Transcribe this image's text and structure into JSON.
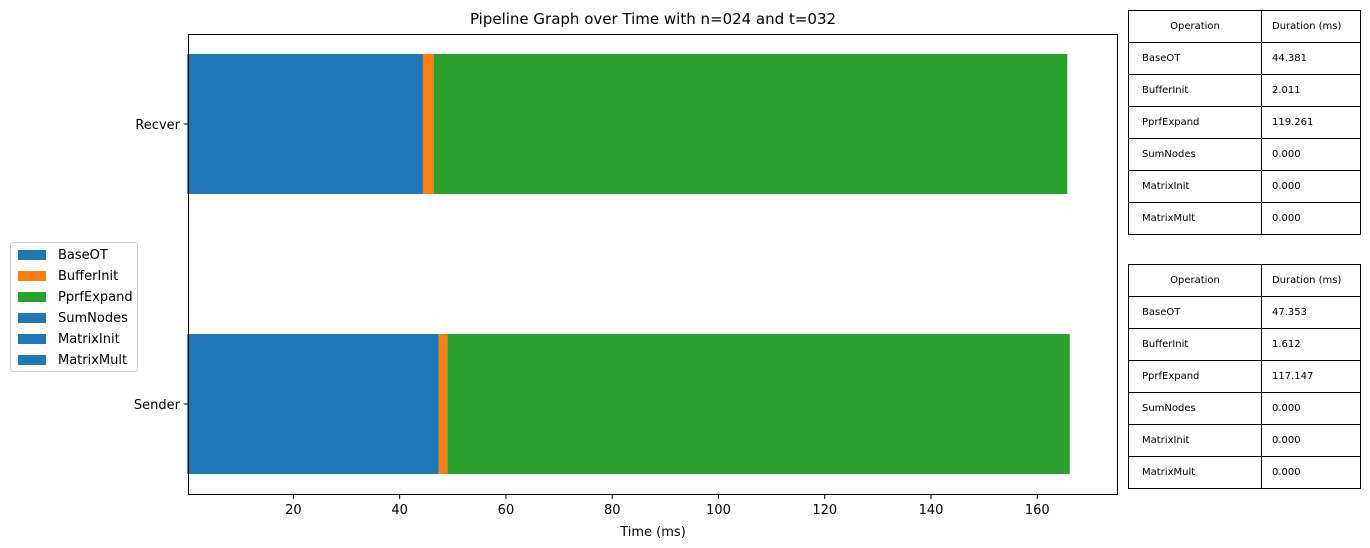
{
  "chart_data": {
    "type": "bar",
    "orientation": "horizontal",
    "stacked": true,
    "title": "Pipeline Graph over Time with n=024 and t=032",
    "xlabel": "Time (ms)",
    "xlim": [
      0,
      175
    ],
    "xticks": [
      20,
      40,
      60,
      80,
      100,
      120,
      140,
      160
    ],
    "categories": [
      "Sender",
      "Recver"
    ],
    "series": [
      {
        "name": "BaseOT",
        "color": "#1f77b4",
        "values": [
          47.353,
          44.381
        ]
      },
      {
        "name": "BufferInit",
        "color": "#ff7f0e",
        "values": [
          1.612,
          2.011
        ]
      },
      {
        "name": "PprfExpand",
        "color": "#2ca02c",
        "values": [
          117.147,
          119.261
        ]
      },
      {
        "name": "SumNodes",
        "color": "#1f77b4",
        "values": [
          0.0,
          0.0
        ]
      },
      {
        "name": "MatrixInit",
        "color": "#1f77b4",
        "values": [
          0.0,
          0.0
        ]
      },
      {
        "name": "MatrixMult",
        "color": "#1f77b4",
        "values": [
          0.0,
          0.0
        ]
      }
    ],
    "legend_position": "left",
    "grid": false
  },
  "tables": [
    {
      "headers": [
        "Operation",
        "Duration (ms)"
      ],
      "rows": [
        [
          "BaseOT",
          "44.381"
        ],
        [
          "BufferInit",
          "2.011"
        ],
        [
          "PprfExpand",
          "119.261"
        ],
        [
          "SumNodes",
          "0.000"
        ],
        [
          "MatrixInit",
          "0.000"
        ],
        [
          "MatrixMult",
          "0.000"
        ]
      ]
    },
    {
      "headers": [
        "Operation",
        "Duration (ms)"
      ],
      "rows": [
        [
          "BaseOT",
          "47.353"
        ],
        [
          "BufferInit",
          "1.612"
        ],
        [
          "PprfExpand",
          "117.147"
        ],
        [
          "SumNodes",
          "0.000"
        ],
        [
          "MatrixInit",
          "0.000"
        ],
        [
          "MatrixMult",
          "0.000"
        ]
      ]
    }
  ]
}
